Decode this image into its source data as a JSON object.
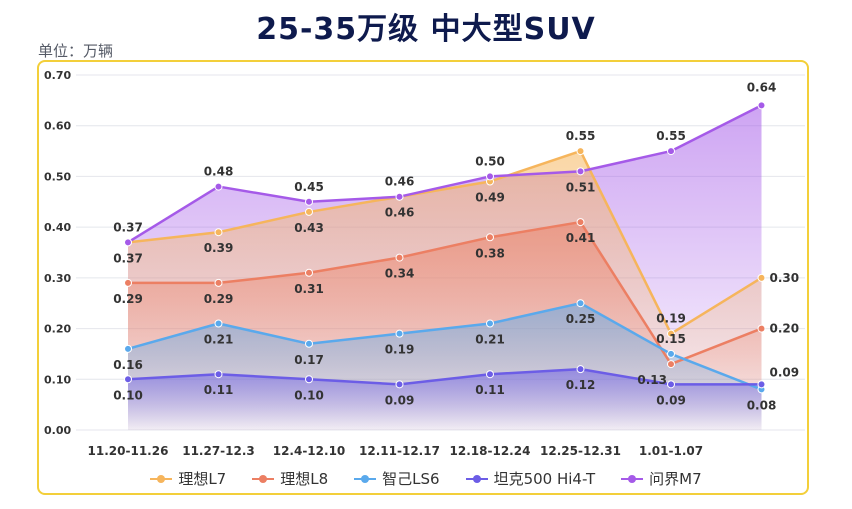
{
  "title": "25-35万级 中大型SUV",
  "unit_label": "单位：万辆",
  "chart_data": {
    "type": "area",
    "title": "25-35万级 中大型SUV",
    "ylabel": "单位：万辆",
    "ylim": [
      0,
      0.7
    ],
    "yticks": [
      "0.00",
      "0.10",
      "0.20",
      "0.30",
      "0.40",
      "0.50",
      "0.60",
      "0.70"
    ],
    "categories": [
      "11.20-11.26",
      "11.27-12.3",
      "12.4-12.10",
      "12.11-12.17",
      "12.18-12.24",
      "12.25-12.31",
      "1.01-1.07",
      ""
    ],
    "grid": "horizontal",
    "legend_position": "bottom",
    "series": [
      {
        "name": "理想L7",
        "color": "#f6b55c",
        "values": [
          0.37,
          0.39,
          0.43,
          0.46,
          0.49,
          0.55,
          0.19,
          0.3
        ]
      },
      {
        "name": "理想L8",
        "color": "#ec7f63",
        "values": [
          0.29,
          0.29,
          0.31,
          0.34,
          0.38,
          0.41,
          0.13,
          0.2
        ]
      },
      {
        "name": "智己LS6",
        "color": "#5aa9ec",
        "values": [
          0.16,
          0.21,
          0.17,
          0.19,
          0.21,
          0.25,
          0.15,
          0.08
        ]
      },
      {
        "name": "坦克500 Hi4-T",
        "color": "#6c5de6",
        "values": [
          0.1,
          0.11,
          0.1,
          0.09,
          0.11,
          0.12,
          0.09,
          0.09
        ]
      },
      {
        "name": "问界M7",
        "color": "#a55ae8",
        "values": [
          0.37,
          0.48,
          0.45,
          0.46,
          0.5,
          0.51,
          0.55,
          0.64
        ]
      }
    ]
  }
}
